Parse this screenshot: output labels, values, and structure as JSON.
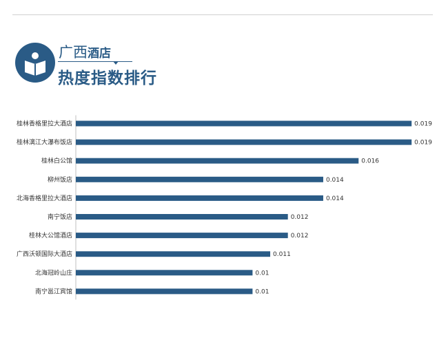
{
  "header": {
    "title_part1": "广西",
    "title_part2": "酒店",
    "title_line2": "热度指数排行",
    "icon": "book-reading-icon"
  },
  "colors": {
    "accent": "#2a5b86",
    "bar": "#2a5b86",
    "rule": "#d0d0d0"
  },
  "chart_data": {
    "type": "bar",
    "orientation": "horizontal",
    "categories": [
      "桂林香格里拉大酒店",
      "桂林漓江大瀑布饭店",
      "桂林白公馆",
      "柳州饭店",
      "北海香格里拉大酒店",
      "南宁饭店",
      "桂林大公馆酒店",
      "广西沃顿国际大酒店",
      "北海冠岭山庄",
      "南宁邕江宾馆"
    ],
    "values": [
      0.019,
      0.019,
      0.016,
      0.014,
      0.014,
      0.012,
      0.012,
      0.011,
      0.01,
      0.01
    ],
    "value_labels": [
      "0.019",
      "0.019",
      "0.016",
      "0.014",
      "0.014",
      "0.012",
      "0.012",
      "0.011",
      "0.01",
      "0.01"
    ],
    "xlim": [
      0,
      0.0195
    ],
    "grid": false,
    "legend": "none"
  }
}
